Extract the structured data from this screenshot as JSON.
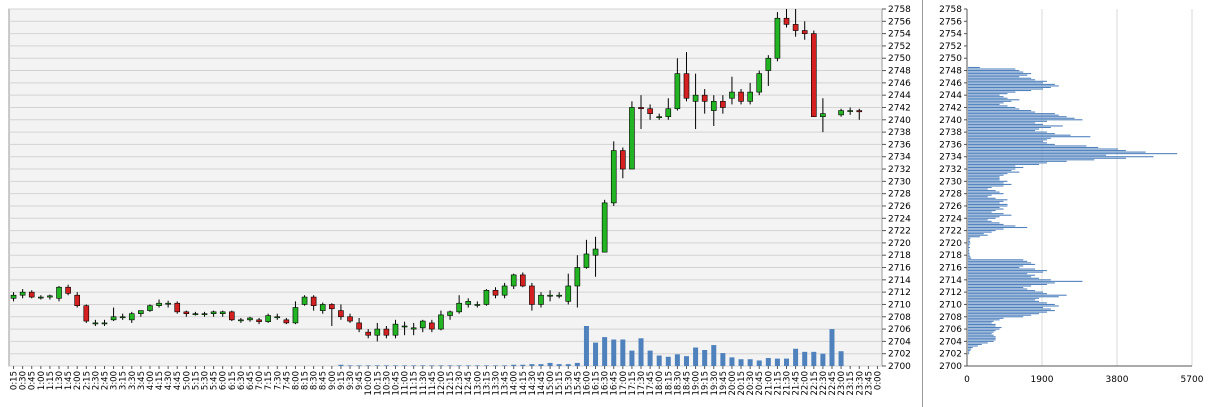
{
  "chart_data": [
    {
      "type": "candlestick",
      "ylim": [
        2700,
        2758
      ],
      "y_ticks": [
        2700,
        2702,
        2704,
        2706,
        2708,
        2710,
        2712,
        2714,
        2716,
        2718,
        2720,
        2722,
        2724,
        2726,
        2728,
        2730,
        2732,
        2734,
        2736,
        2738,
        2740,
        2742,
        2744,
        2746,
        2748,
        2750,
        2752,
        2754,
        2756,
        2758
      ],
      "x_ticks": [
        "0:15",
        "0:30",
        "0:45",
        "1:00",
        "1:15",
        "1:30",
        "1:45",
        "2:00",
        "2:15",
        "2:30",
        "2:45",
        "3:00",
        "3:15",
        "3:30",
        "3:45",
        "4:00",
        "4:15",
        "4:30",
        "4:45",
        "5:00",
        "5:15",
        "5:30",
        "5:45",
        "6:00",
        "6:15",
        "6:30",
        "6:45",
        "7:00",
        "7:15",
        "7:30",
        "7:45",
        "8:00",
        "8:15",
        "8:30",
        "8:45",
        "9:00",
        "9:15",
        "9:30",
        "9:45",
        "10:00",
        "10:15",
        "10:30",
        "10:45",
        "11:00",
        "11:15",
        "11:30",
        "11:45",
        "12:00",
        "12:15",
        "12:30",
        "12:45",
        "13:00",
        "13:15",
        "13:30",
        "13:45",
        "14:00",
        "14:15",
        "14:30",
        "14:45",
        "15:00",
        "15:15",
        "15:30",
        "15:45",
        "16:00",
        "16:15",
        "16:30",
        "16:45",
        "17:00",
        "17:15",
        "17:30",
        "17:45",
        "18:00",
        "18:15",
        "18:30",
        "18:45",
        "19:00",
        "19:15",
        "19:30",
        "19:45",
        "20:00",
        "20:15",
        "20:30",
        "20:45",
        "21:00",
        "21:15",
        "21:30",
        "21:45",
        "22:00",
        "22:15",
        "22:30",
        "22:45",
        "23:00",
        "23:15",
        "23:30",
        "23:45",
        "0:00"
      ],
      "grid": true,
      "up_color": "#22b422",
      "down_color": "#d42020",
      "volume_color": "#4f81bd",
      "candles": [
        [
          2711.0,
          2712.0,
          2710.5,
          2711.5
        ],
        [
          2711.5,
          2712.5,
          2711.0,
          2712.0
        ],
        [
          2712.0,
          2712.3,
          2711.0,
          2711.2
        ],
        [
          2711.2,
          2711.5,
          2710.8,
          2711.2
        ],
        [
          2711.2,
          2711.6,
          2710.8,
          2711.4
        ],
        [
          2711.0,
          2713.0,
          2710.5,
          2712.8
        ],
        [
          2712.8,
          2713.2,
          2711.5,
          2711.8
        ],
        [
          2711.5,
          2712.0,
          2709.5,
          2709.8
        ],
        [
          2709.8,
          2710.0,
          2707.0,
          2707.3
        ],
        [
          2707.0,
          2707.5,
          2706.5,
          2707.0
        ],
        [
          2707.0,
          2707.5,
          2706.5,
          2707.0
        ],
        [
          2707.5,
          2709.5,
          2707.3,
          2708.0
        ],
        [
          2708.0,
          2708.5,
          2707.5,
          2708.0
        ],
        [
          2707.5,
          2708.8,
          2707.0,
          2708.5
        ],
        [
          2708.5,
          2709.0,
          2708.0,
          2709.0
        ],
        [
          2709.0,
          2710.0,
          2708.8,
          2709.8
        ],
        [
          2709.8,
          2710.8,
          2709.5,
          2710.2
        ],
        [
          2710.2,
          2710.6,
          2709.5,
          2710.2
        ],
        [
          2710.2,
          2710.5,
          2708.5,
          2708.8
        ],
        [
          2708.8,
          2709.0,
          2708.0,
          2708.5
        ],
        [
          2708.5,
          2708.8,
          2708.2,
          2708.5
        ],
        [
          2708.5,
          2708.8,
          2708.0,
          2708.5
        ],
        [
          2708.5,
          2709.0,
          2708.0,
          2708.8
        ],
        [
          2708.5,
          2709.0,
          2708.0,
          2708.8
        ],
        [
          2708.8,
          2709.0,
          2707.3,
          2707.5
        ],
        [
          2707.5,
          2707.8,
          2707.0,
          2707.5
        ],
        [
          2707.5,
          2708.0,
          2707.2,
          2707.8
        ],
        [
          2707.5,
          2707.8,
          2706.8,
          2707.2
        ],
        [
          2707.2,
          2708.5,
          2707.0,
          2708.2
        ],
        [
          2708.0,
          2708.5,
          2707.5,
          2708.0
        ],
        [
          2707.5,
          2707.8,
          2706.8,
          2707.0
        ],
        [
          2707.0,
          2710.5,
          2706.8,
          2709.5
        ],
        [
          2710.0,
          2711.5,
          2709.8,
          2711.2
        ],
        [
          2711.2,
          2711.5,
          2709.0,
          2709.8
        ],
        [
          2709.0,
          2710.3,
          2708.5,
          2710.0
        ],
        [
          2710.0,
          2710.2,
          2706.5,
          2709.3
        ],
        [
          2709.0,
          2710.0,
          2707.5,
          2708.0
        ],
        [
          2708.0,
          2708.5,
          2707.0,
          2707.3
        ],
        [
          2707.0,
          2707.8,
          2705.5,
          2706.0
        ],
        [
          2705.5,
          2706.0,
          2704.5,
          2705.0
        ],
        [
          2705.0,
          2707.0,
          2704.0,
          2706.0
        ],
        [
          2706.0,
          2706.5,
          2704.5,
          2705.0
        ],
        [
          2705.0,
          2707.5,
          2704.5,
          2706.8
        ],
        [
          2706.5,
          2707.2,
          2705.0,
          2706.5
        ],
        [
          2706.0,
          2707.0,
          2705.0,
          2706.2
        ],
        [
          2706.2,
          2707.5,
          2705.5,
          2707.3
        ],
        [
          2707.0,
          2707.5,
          2705.5,
          2706.0
        ],
        [
          2706.0,
          2709.0,
          2705.8,
          2708.3
        ],
        [
          2708.2,
          2709.0,
          2707.5,
          2708.8
        ],
        [
          2708.8,
          2711.5,
          2708.5,
          2710.2
        ],
        [
          2710.0,
          2711.0,
          2709.5,
          2710.5
        ],
        [
          2710.0,
          2710.5,
          2709.5,
          2710.0
        ],
        [
          2710.0,
          2712.5,
          2709.8,
          2712.3
        ],
        [
          2712.3,
          2712.8,
          2711.0,
          2711.5
        ],
        [
          2711.5,
          2713.5,
          2711.0,
          2713.0
        ],
        [
          2713.0,
          2715.0,
          2712.5,
          2714.8
        ],
        [
          2714.8,
          2715.2,
          2712.8,
          2713.0
        ],
        [
          2713.0,
          2713.5,
          2709.0,
          2710.0
        ],
        [
          2710.0,
          2712.0,
          2709.5,
          2711.5
        ],
        [
          2711.5,
          2712.3,
          2710.5,
          2711.5
        ],
        [
          2711.5,
          2712.0,
          2711.0,
          2711.5
        ],
        [
          2710.5,
          2715.0,
          2710.0,
          2713.0
        ],
        [
          2713.0,
          2718.0,
          2709.5,
          2716.0
        ],
        [
          2716.0,
          2720.5,
          2715.8,
          2718.2
        ],
        [
          2718.0,
          2721.0,
          2714.5,
          2719.0
        ],
        [
          2718.5,
          2727.0,
          2718.5,
          2726.5
        ],
        [
          2726.5,
          2736.5,
          2726.0,
          2735.0
        ],
        [
          2735.0,
          2735.5,
          2730.5,
          2732.0
        ],
        [
          2732.0,
          2743.0,
          2732.0,
          2742.0
        ],
        [
          2742.0,
          2744.0,
          2738.5,
          2741.8
        ],
        [
          2741.8,
          2742.5,
          2740.0,
          2741.0
        ],
        [
          2740.5,
          2741.0,
          2740.0,
          2740.5
        ],
        [
          2740.5,
          2743.5,
          2740.0,
          2741.8
        ],
        [
          2741.8,
          2750.0,
          2741.5,
          2747.5
        ],
        [
          2747.5,
          2751.0,
          2743.0,
          2743.5
        ],
        [
          2743.0,
          2747.5,
          2738.5,
          2744.0
        ],
        [
          2744.0,
          2745.0,
          2741.0,
          2743.0
        ],
        [
          2741.5,
          2744.0,
          2739.0,
          2743.0
        ],
        [
          2743.0,
          2744.0,
          2741.0,
          2742.0
        ],
        [
          2743.5,
          2747.0,
          2742.5,
          2744.5
        ],
        [
          2744.5,
          2745.0,
          2742.5,
          2743.0
        ],
        [
          2743.0,
          2746.0,
          2742.5,
          2744.5
        ],
        [
          2744.5,
          2748.0,
          2744.0,
          2747.5
        ],
        [
          2748.0,
          2750.5,
          2745.5,
          2750.0
        ],
        [
          2750.0,
          2757.5,
          2749.5,
          2756.5
        ],
        [
          2756.5,
          2758.0,
          2755.0,
          2755.5
        ],
        [
          2755.5,
          2758.0,
          2753.5,
          2754.5
        ],
        [
          2754.5,
          2756.0,
          2753.0,
          2754.0
        ],
        [
          2754.0,
          2754.5,
          2740.5,
          2740.5
        ],
        [
          2740.5,
          2743.5,
          2738.0,
          2741.0
        ],
        null,
        [
          2740.8,
          2741.8,
          2740.5,
          2741.5
        ],
        [
          2741.5,
          2742.0,
          2740.8,
          2741.5
        ],
        [
          2741.5,
          2741.8,
          2740.0,
          2741.3
        ],
        null,
        null
      ],
      "volume": [
        0,
        0,
        0,
        0,
        0,
        0,
        0,
        0,
        0,
        0,
        0,
        0,
        0,
        0,
        0,
        0,
        0,
        0,
        0,
        0,
        0,
        0,
        0,
        0,
        0,
        0,
        0,
        0,
        0,
        0,
        0,
        0,
        0,
        0,
        0,
        0,
        0.2,
        0.1,
        0.1,
        0.1,
        0.1,
        0.1,
        0.1,
        0.1,
        0.1,
        0.1,
        0.1,
        0.1,
        0.1,
        0.1,
        0.1,
        0.1,
        0.1,
        0.1,
        0.1,
        0.2,
        0.2,
        0.3,
        0.3,
        0.5,
        0.3,
        0.3,
        0.5,
        6.5,
        3.8,
        4.7,
        4.3,
        4.3,
        2.5,
        4.5,
        2.5,
        1.7,
        1.5,
        1.9,
        1.6,
        3.0,
        2.6,
        3.4,
        2.1,
        1.4,
        1.1,
        1.1,
        0.9,
        1.3,
        1.2,
        1.2,
        2.8,
        2.3,
        2.3,
        2.0,
        6.0,
        2.4,
        0,
        0,
        0,
        0
      ]
    },
    {
      "type": "horizontal-bar",
      "title": "",
      "xlim": [
        0,
        5700
      ],
      "x_ticks": [
        "0",
        "1900",
        "3800",
        "5700"
      ],
      "ylim": [
        2700,
        2758
      ],
      "y_ticks": [
        2700,
        2702,
        2704,
        2706,
        2708,
        2710,
        2712,
        2714,
        2716,
        2718,
        2720,
        2722,
        2724,
        2726,
        2728,
        2730,
        2732,
        2734,
        2736,
        2738,
        2740,
        2742,
        2744,
        2746,
        2748,
        2750,
        2752,
        2754,
        2756,
        2758
      ],
      "bar_color": "#4f81bd",
      "price_step": 0.25,
      "prices_from": 2702.0,
      "values": [
        30,
        30,
        60,
        80,
        120,
        250,
        350,
        500,
        650,
        700,
        700,
        700,
        650,
        600,
        650,
        700,
        800,
        850,
        700,
        700,
        600,
        650,
        800,
        900,
        1400,
        1600,
        1800,
        2000,
        2200,
        2100,
        1900,
        2300,
        2200,
        2000,
        1800,
        1700,
        1800,
        2300,
        2500,
        2000,
        1900,
        1700,
        1500,
        1400,
        1600,
        2000,
        2200,
        2900,
        2100,
        1800,
        1600,
        1700,
        1500,
        1900,
        2000,
        1700,
        1300,
        1400,
        1700,
        1600,
        1500,
        1400,
        80,
        60,
        40,
        40,
        30,
        30,
        30,
        50,
        30,
        40,
        60,
        50,
        40,
        60,
        300,
        500,
        400,
        600,
        700,
        900,
        1500,
        1200,
        900,
        800,
        600,
        500,
        700,
        800,
        1100,
        900,
        600,
        700,
        900,
        800,
        1000,
        1000,
        800,
        900,
        1000,
        700,
        500,
        600,
        900,
        800,
        700,
        500,
        600,
        900,
        1100,
        900,
        1000,
        800,
        800,
        800,
        900,
        1000,
        1300,
        1100,
        1200,
        1400,
        1200,
        1800,
        2000,
        2500,
        3200,
        4000,
        4700,
        3500,
        5300,
        4500,
        4000,
        3800,
        3300,
        3000,
        2200,
        2000,
        1900,
        2000,
        2100,
        3100,
        2600,
        2200,
        2000,
        1700,
        1800,
        2100,
        2400,
        1900,
        1700,
        2000,
        2900,
        2700,
        2500,
        2300,
        2200,
        1700,
        1600,
        1300,
        1200,
        1000,
        800,
        900,
        1100,
        1300,
        1000,
        900,
        800,
        1000,
        1200,
        1600,
        1900,
        2100,
        2300,
        2200,
        1900,
        2000,
        1700,
        1600,
        1300,
        1500,
        1600,
        1400,
        1300,
        1200,
        300
      ]
    }
  ]
}
